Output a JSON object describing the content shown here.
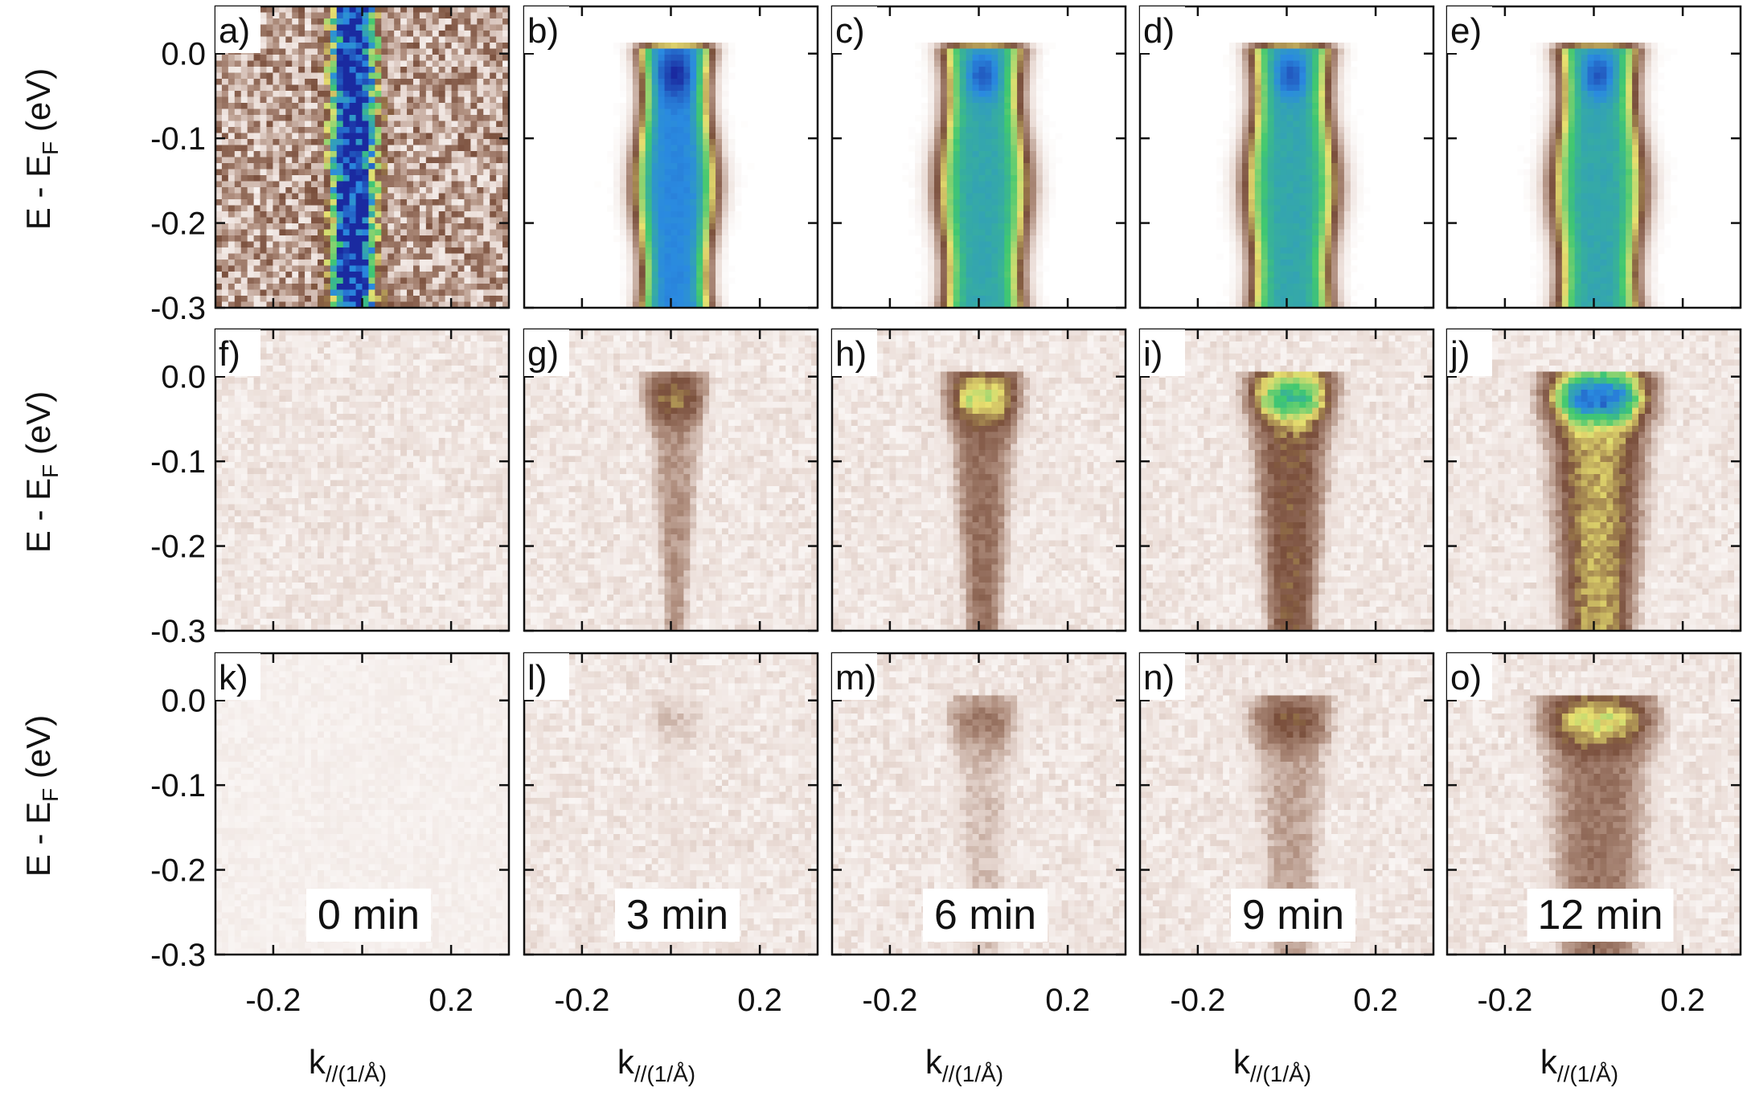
{
  "chart_data": {
    "type": "heatmap",
    "layout": {
      "rows": 3,
      "cols": 5
    },
    "panel_labels": [
      "a)",
      "b)",
      "c)",
      "d)",
      "e)",
      "f)",
      "g)",
      "h)",
      "i)",
      "j)",
      "k)",
      "l)",
      "m)",
      "n)",
      "o)"
    ],
    "time_labels": [
      "0 min",
      "3 min",
      "6 min",
      "9 min",
      "12 min"
    ],
    "ylabel": {
      "main": "E - E",
      "sub": "F",
      "unit": " (eV)"
    },
    "xlabel": {
      "main": "k",
      "sub": "//(1/Å)"
    },
    "yticks": [
      0.0,
      -0.1,
      -0.2,
      -0.3
    ],
    "ytick_labels": [
      "0.0",
      "-0.1",
      "-0.2",
      "-0.3"
    ],
    "xticks": [
      -0.2,
      0.2
    ],
    "xtick_labels": [
      "-0.2",
      "0.2"
    ],
    "ylim": [
      -0.3,
      0.05
    ],
    "xlim": [
      -0.33,
      0.33
    ],
    "colormap": [
      "#ffffff",
      "#eadcd6",
      "#b08f7f",
      "#7a4f3c",
      "#e8e070",
      "#40c870",
      "#2a8ae0",
      "#1a2aa0"
    ],
    "panels": [
      {
        "label": "a)",
        "kind": "noisy",
        "intensity": 0.75,
        "band_center": -0.02,
        "band_width": 0.055,
        "flat_top": 0.02,
        "spread": 0.0
      },
      {
        "label": "b)",
        "kind": "smooth",
        "intensity": 1.0,
        "band_center": 0.01,
        "band_width": 0.09,
        "flat_top": 0.03,
        "spread": 0.0
      },
      {
        "label": "c)",
        "kind": "smooth",
        "intensity": 0.92,
        "band_center": 0.01,
        "band_width": 0.1,
        "flat_top": 0.04,
        "spread": 0.02
      },
      {
        "label": "d)",
        "kind": "smooth",
        "intensity": 0.92,
        "band_center": 0.01,
        "band_width": 0.1,
        "flat_top": 0.04,
        "spread": 0.03
      },
      {
        "label": "e)",
        "kind": "smooth",
        "intensity": 0.92,
        "band_center": 0.01,
        "band_width": 0.1,
        "flat_top": 0.05,
        "spread": 0.03
      },
      {
        "label": "f)",
        "kind": "bg",
        "intensity": 0.05,
        "band_center": -0.03,
        "band_width": 0.04,
        "flat_top": 0.0,
        "spread": 0.02
      },
      {
        "label": "g)",
        "kind": "dirac",
        "intensity": 0.45,
        "band_center": 0.01,
        "band_width": 0.04,
        "flat_top": 0.05,
        "spread": 0.0
      },
      {
        "label": "h)",
        "kind": "dirac",
        "intensity": 0.58,
        "band_center": 0.01,
        "band_width": 0.045,
        "flat_top": 0.06,
        "spread": 0.01
      },
      {
        "label": "i)",
        "kind": "dirac",
        "intensity": 0.7,
        "band_center": 0.01,
        "band_width": 0.05,
        "flat_top": 0.07,
        "spread": 0.02
      },
      {
        "label": "j)",
        "kind": "dirac",
        "intensity": 0.85,
        "band_center": 0.01,
        "band_width": 0.055,
        "flat_top": 0.09,
        "spread": 0.03
      },
      {
        "label": "k)",
        "kind": "bg",
        "intensity": 0.0,
        "band_center": 0.0,
        "band_width": 0.04,
        "flat_top": 0.0,
        "spread": 0.0
      },
      {
        "label": "l)",
        "kind": "dirac",
        "intensity": 0.2,
        "band_center": 0.01,
        "band_width": 0.04,
        "flat_top": 0.05,
        "spread": 0.0
      },
      {
        "label": "m)",
        "kind": "dirac",
        "intensity": 0.35,
        "band_center": 0.01,
        "band_width": 0.045,
        "flat_top": 0.06,
        "spread": 0.01
      },
      {
        "label": "n)",
        "kind": "dirac",
        "intensity": 0.45,
        "band_center": 0.01,
        "band_width": 0.05,
        "flat_top": 0.07,
        "spread": 0.02
      },
      {
        "label": "o)",
        "kind": "dirac",
        "intensity": 0.62,
        "band_center": 0.01,
        "band_width": 0.06,
        "flat_top": 0.1,
        "spread": 0.04
      }
    ]
  }
}
